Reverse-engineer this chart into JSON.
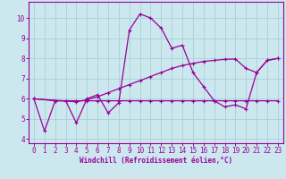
{
  "xlabel": "Windchill (Refroidissement éolien,°C)",
  "bg_color": "#cce8ee",
  "grid_color": "#aad4da",
  "line_color": "#990099",
  "xlim": [
    -0.5,
    23.5
  ],
  "ylim": [
    3.8,
    10.8
  ],
  "yticks": [
    4,
    5,
    6,
    7,
    8,
    9,
    10
  ],
  "xticks": [
    0,
    1,
    2,
    3,
    4,
    5,
    6,
    7,
    8,
    9,
    10,
    11,
    12,
    13,
    14,
    15,
    16,
    17,
    18,
    19,
    20,
    21,
    22,
    23
  ],
  "series1_x": [
    0,
    1,
    2,
    3,
    4,
    5,
    6,
    7,
    8,
    9,
    10,
    11,
    12,
    13,
    14,
    15,
    16,
    17,
    18,
    19,
    20,
    21,
    22,
    23
  ],
  "series1_y": [
    6.0,
    4.4,
    5.9,
    5.9,
    4.8,
    6.0,
    6.2,
    5.3,
    5.8,
    9.4,
    10.2,
    10.0,
    9.5,
    8.5,
    8.65,
    7.3,
    6.6,
    5.9,
    5.6,
    5.7,
    5.5,
    7.3,
    7.9,
    8.0
  ],
  "series2_x": [
    0,
    2,
    3,
    4,
    5,
    6,
    7,
    8,
    9,
    10,
    11,
    12,
    13,
    14,
    15,
    16,
    17,
    18,
    19,
    20,
    21,
    22,
    23
  ],
  "series2_y": [
    6.0,
    5.9,
    5.9,
    5.9,
    5.9,
    5.9,
    5.9,
    5.9,
    5.9,
    5.9,
    5.9,
    5.9,
    5.9,
    5.9,
    5.9,
    5.9,
    5.9,
    5.9,
    5.9,
    5.9,
    5.9,
    5.9,
    5.9
  ],
  "series3_x": [
    0,
    4,
    5,
    6,
    7,
    8,
    9,
    10,
    11,
    12,
    13,
    14,
    15,
    16,
    17,
    18,
    19,
    20,
    21,
    22,
    23
  ],
  "series3_y": [
    6.0,
    5.85,
    5.95,
    6.1,
    6.3,
    6.5,
    6.7,
    6.9,
    7.1,
    7.3,
    7.5,
    7.65,
    7.75,
    7.85,
    7.9,
    7.95,
    7.97,
    7.5,
    7.3,
    7.9,
    8.0
  ]
}
